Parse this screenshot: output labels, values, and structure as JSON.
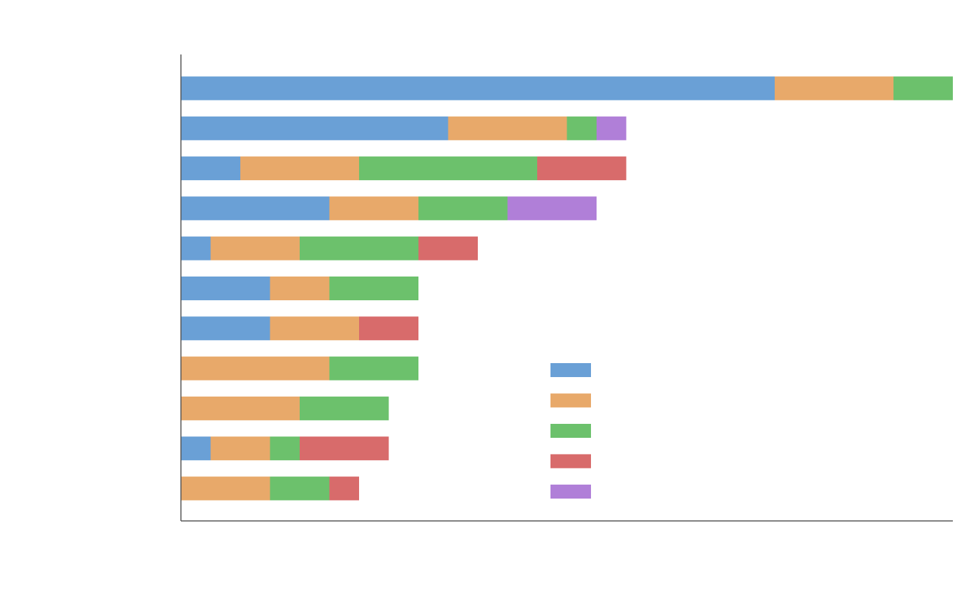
{
  "chart_data": {
    "type": "bar",
    "orientation": "horizontal",
    "stacked": true,
    "title": "",
    "xlabel": "",
    "ylabel": "",
    "xlim": [
      0,
      26
    ],
    "grid": false,
    "legend_position": "center",
    "categories": [
      "",
      "",
      "",
      "",
      "",
      "",
      "",
      "",
      "",
      "",
      ""
    ],
    "series": [
      {
        "name": "",
        "color": "#6aa0d6",
        "values": [
          20,
          9,
          2,
          5,
          1,
          3,
          3,
          0,
          0,
          1,
          0
        ]
      },
      {
        "name": "",
        "color": "#e8a96a",
        "values": [
          4,
          4,
          4,
          3,
          3,
          2,
          3,
          5,
          4,
          2,
          3
        ]
      },
      {
        "name": "",
        "color": "#6cc16c",
        "values": [
          2,
          1,
          6,
          3,
          4,
          3,
          0,
          3,
          3,
          1,
          2
        ]
      },
      {
        "name": "",
        "color": "#d86b6b",
        "values": [
          0,
          0,
          3,
          0,
          2,
          0,
          2,
          0,
          0,
          3,
          1
        ]
      },
      {
        "name": "",
        "color": "#b07fd8",
        "values": [
          0,
          1,
          0,
          3,
          0,
          0,
          0,
          0,
          0,
          0,
          0
        ]
      }
    ]
  }
}
